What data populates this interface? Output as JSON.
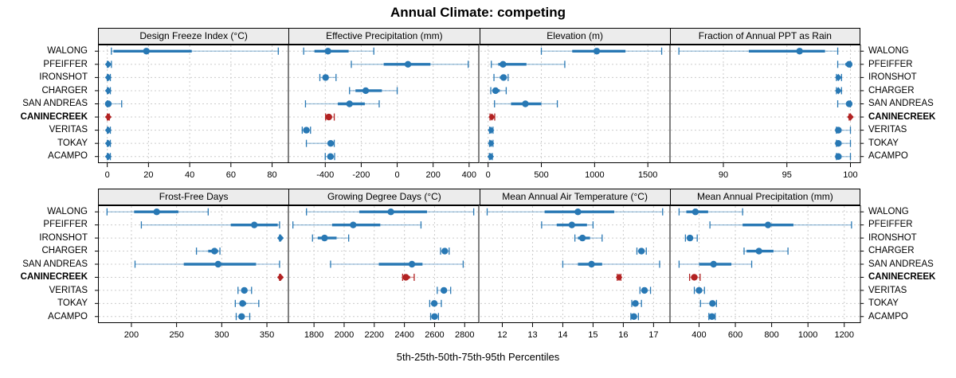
{
  "chart_data": {
    "type": "dotplot-intervals",
    "title": "Annual Climate: competing",
    "xlabel": "5th-25th-50th-75th-95th Percentiles",
    "layout": "2 rows x 4 columns",
    "percentiles": [
      5,
      25,
      50,
      75,
      95
    ],
    "categories": [
      "WALONG",
      "PFEIFFER",
      "IRONSHOT",
      "CHARGER",
      "SAN ANDREAS",
      "CANINECREEK",
      "VERITAS",
      "TOKAY",
      "ACAMPO"
    ],
    "highlight_category": "CANINECREEK",
    "panels": [
      {
        "title": "Design Freeze Index (°C)",
        "xlim": [
          -4.5,
          88
        ],
        "ticks": [
          0,
          20,
          40,
          60,
          80
        ],
        "values": [
          [
            2,
            3,
            19,
            41,
            83
          ],
          [
            0,
            0,
            0.5,
            1,
            2
          ],
          [
            0,
            0,
            0.5,
            1,
            1.5
          ],
          [
            0,
            0,
            0.5,
            1,
            1.5
          ],
          [
            0,
            0,
            0.5,
            1.5,
            7
          ],
          [
            0,
            0,
            0.5,
            1,
            1
          ],
          [
            0,
            0,
            0.5,
            1,
            1.5
          ],
          [
            0,
            0,
            0.5,
            1,
            1.5
          ],
          [
            0,
            0,
            0.5,
            1,
            1.5
          ]
        ]
      },
      {
        "title": "Effective Precipitation (mm)",
        "xlim": [
          -605,
          455
        ],
        "ticks": [
          -400,
          -200,
          0,
          200,
          400
        ],
        "values": [
          [
            -520,
            -460,
            -385,
            -270,
            -130
          ],
          [
            -255,
            -75,
            60,
            185,
            395
          ],
          [
            -430,
            -412,
            -398,
            -382,
            -340
          ],
          [
            -265,
            -232,
            -175,
            -85,
            0
          ],
          [
            -510,
            -330,
            -265,
            -180,
            -100
          ],
          [
            -398,
            -390,
            -380,
            -365,
            -350
          ],
          [
            -528,
            -515,
            -505,
            -494,
            -482
          ],
          [
            -505,
            -382,
            -370,
            -361,
            -350
          ],
          [
            -400,
            -383,
            -371,
            -360,
            -348
          ]
        ]
      },
      {
        "title": "Elevation (m)",
        "xlim": [
          -80,
          1710
        ],
        "ticks": [
          0,
          500,
          1000,
          1500
        ],
        "values": [
          [
            500,
            790,
            1020,
            1290,
            1630
          ],
          [
            30,
            95,
            140,
            360,
            720
          ],
          [
            55,
            110,
            145,
            175,
            188
          ],
          [
            25,
            45,
            70,
            110,
            170
          ],
          [
            60,
            215,
            350,
            500,
            650
          ],
          [
            18,
            25,
            35,
            50,
            62
          ],
          [
            14,
            20,
            27,
            35,
            46
          ],
          [
            14,
            20,
            27,
            35,
            46
          ],
          [
            12,
            17,
            24,
            31,
            40
          ]
        ]
      },
      {
        "title": "Fraction of Annual PPT as Rain",
        "xlim": [
          85.8,
          100.8
        ],
        "ticks": [
          90,
          95,
          100
        ],
        "values": [
          [
            86.5,
            92,
            96,
            98,
            99
          ],
          [
            99,
            99.6,
            99.9,
            100,
            100
          ],
          [
            98.9,
            99,
            99.05,
            99.2,
            99.3
          ],
          [
            98.9,
            99,
            99.05,
            99.2,
            99.3
          ],
          [
            99,
            99.7,
            99.9,
            100,
            100
          ],
          [
            99.9,
            99.95,
            100,
            100,
            100
          ],
          [
            98.9,
            99,
            99.05,
            99.3,
            100
          ],
          [
            98.9,
            99,
            99.05,
            99.3,
            100
          ],
          [
            98.9,
            99,
            99.05,
            99.3,
            100
          ]
        ]
      },
      {
        "title": "Frost-Free Days",
        "xlim": [
          163,
          374
        ],
        "ticks": [
          200,
          250,
          300,
          350
        ],
        "values": [
          [
            173,
            203,
            228,
            252,
            285
          ],
          [
            211,
            310,
            336,
            362,
            364
          ],
          [
            364,
            365,
            365,
            365,
            365
          ],
          [
            272,
            285,
            292,
            296,
            298
          ],
          [
            204,
            258,
            296,
            338,
            364
          ],
          [
            364,
            365,
            365,
            365,
            365
          ],
          [
            318,
            322,
            325,
            328,
            333
          ],
          [
            315,
            320,
            323,
            327,
            341
          ],
          [
            316,
            320,
            322,
            325,
            331
          ]
        ]
      },
      {
        "title": "Growing Degree Days (°C)",
        "xlim": [
          1630,
          2895
        ],
        "ticks": [
          1800,
          2000,
          2200,
          2400,
          2600,
          2800
        ],
        "values": [
          [
            1750,
            2100,
            2310,
            2550,
            2860
          ],
          [
            1660,
            1920,
            2060,
            2240,
            2510
          ],
          [
            1790,
            1825,
            1870,
            1950,
            2030
          ],
          [
            2640,
            2655,
            2668,
            2683,
            2697
          ],
          [
            1910,
            2230,
            2450,
            2520,
            2790
          ],
          [
            2388,
            2398,
            2410,
            2437,
            2465
          ],
          [
            2618,
            2645,
            2662,
            2680,
            2707
          ],
          [
            2568,
            2585,
            2598,
            2613,
            2645
          ],
          [
            2574,
            2590,
            2600,
            2611,
            2626
          ]
        ]
      },
      {
        "title": "Mean Annual Air Temperature (°C)",
        "xlim": [
          11.25,
          17.55
        ],
        "ticks": [
          12,
          13,
          14,
          15,
          16,
          17
        ],
        "values": [
          [
            11.5,
            13.4,
            14.5,
            15.7,
            17.3
          ],
          [
            13.3,
            13.8,
            14.3,
            14.8,
            15.0
          ],
          [
            14.4,
            14.5,
            14.65,
            14.9,
            15.3
          ],
          [
            16.45,
            16.52,
            16.6,
            16.67,
            16.76
          ],
          [
            14.0,
            14.5,
            14.95,
            15.3,
            17.2
          ],
          [
            15.8,
            15.83,
            15.86,
            15.89,
            15.92
          ],
          [
            16.55,
            16.62,
            16.7,
            16.76,
            16.9
          ],
          [
            16.28,
            16.34,
            16.4,
            16.46,
            16.6
          ],
          [
            16.25,
            16.3,
            16.35,
            16.41,
            16.5
          ]
        ]
      },
      {
        "title": "Mean Annual Precipitation (mm)",
        "xlim": [
          240,
          1290
        ],
        "ticks": [
          400,
          600,
          800,
          1000,
          1200
        ],
        "values": [
          [
            290,
            330,
            380,
            450,
            640
          ],
          [
            460,
            640,
            780,
            920,
            1240
          ],
          [
            325,
            336,
            350,
            364,
            390
          ],
          [
            648,
            662,
            730,
            810,
            890
          ],
          [
            290,
            400,
            480,
            578,
            690
          ],
          [
            348,
            360,
            374,
            390,
            406
          ],
          [
            374,
            386,
            400,
            414,
            430
          ],
          [
            408,
            458,
            474,
            486,
            496
          ],
          [
            454,
            464,
            471,
            479,
            489
          ]
        ]
      }
    ]
  },
  "colors": {
    "series": "#2878b4",
    "highlight": "#b22222",
    "header_bg": "#ececec",
    "grid_line": "#cccccc",
    "panel_border": "#000000"
  }
}
